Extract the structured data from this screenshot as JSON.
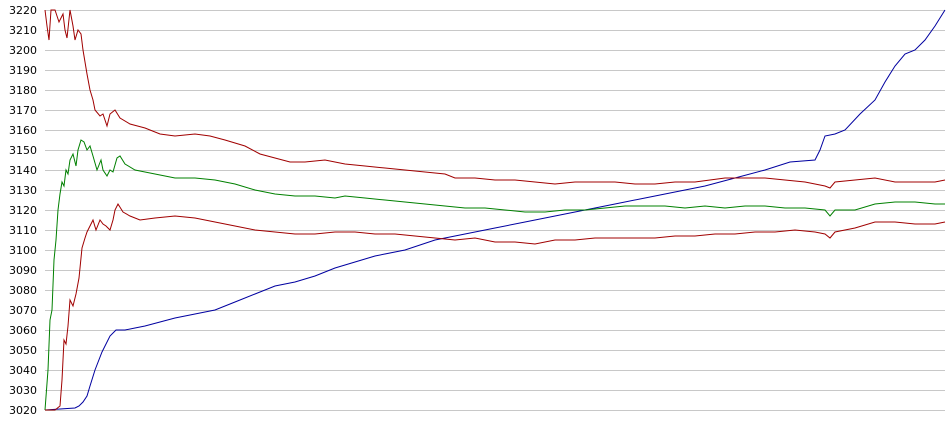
{
  "chart_data": {
    "type": "line",
    "title": "",
    "xlabel": "",
    "ylabel": "",
    "ylim": [
      3020,
      3220
    ],
    "yticks": [
      3020,
      3030,
      3040,
      3050,
      3060,
      3070,
      3080,
      3090,
      3100,
      3110,
      3120,
      3130,
      3140,
      3150,
      3160,
      3170,
      3180,
      3190,
      3200,
      3210,
      3220
    ],
    "grid": "horizontal",
    "legend": "none",
    "x_axis_labels": "none",
    "series": [
      {
        "color": "#0000a0",
        "points": [
          [
            0,
            3020
          ],
          [
            30,
            3021
          ],
          [
            34,
            3022
          ],
          [
            38,
            3024
          ],
          [
            42,
            3027
          ],
          [
            45,
            3032
          ],
          [
            50,
            3040
          ],
          [
            57,
            3049
          ],
          [
            65,
            3057
          ],
          [
            71,
            3060
          ],
          [
            80,
            3060
          ],
          [
            90,
            3061
          ],
          [
            100,
            3062
          ],
          [
            115,
            3064
          ],
          [
            130,
            3066
          ],
          [
            150,
            3068
          ],
          [
            170,
            3070
          ],
          [
            190,
            3074
          ],
          [
            210,
            3078
          ],
          [
            230,
            3082
          ],
          [
            250,
            3084
          ],
          [
            270,
            3087
          ],
          [
            290,
            3091
          ],
          [
            310,
            3094
          ],
          [
            330,
            3097
          ],
          [
            360,
            3100
          ],
          [
            390,
            3105
          ],
          [
            420,
            3108
          ],
          [
            450,
            3111
          ],
          [
            480,
            3114
          ],
          [
            510,
            3117
          ],
          [
            540,
            3120
          ],
          [
            570,
            3123
          ],
          [
            600,
            3126
          ],
          [
            630,
            3129
          ],
          [
            660,
            3132
          ],
          [
            690,
            3136
          ],
          [
            720,
            3140
          ],
          [
            745,
            3144
          ],
          [
            770,
            3145
          ],
          [
            775,
            3150
          ],
          [
            780,
            3157
          ],
          [
            790,
            3158
          ],
          [
            800,
            3160
          ],
          [
            815,
            3168
          ],
          [
            830,
            3175
          ],
          [
            840,
            3184
          ],
          [
            850,
            3192
          ],
          [
            860,
            3198
          ],
          [
            870,
            3200
          ],
          [
            880,
            3205
          ],
          [
            890,
            3212
          ],
          [
            900,
            3220
          ]
        ]
      },
      {
        "color": "#a00000",
        "points": [
          [
            0,
            3220
          ],
          [
            2,
            3212
          ],
          [
            4,
            3205
          ],
          [
            6,
            3220
          ],
          [
            10,
            3220
          ],
          [
            14,
            3214
          ],
          [
            18,
            3218
          ],
          [
            20,
            3210
          ],
          [
            22,
            3206
          ],
          [
            25,
            3220
          ],
          [
            28,
            3212
          ],
          [
            30,
            3205
          ],
          [
            33,
            3210
          ],
          [
            36,
            3208
          ],
          [
            38,
            3200
          ],
          [
            40,
            3194
          ],
          [
            42,
            3188
          ],
          [
            45,
            3180
          ],
          [
            48,
            3175
          ],
          [
            50,
            3170
          ],
          [
            55,
            3167
          ],
          [
            58,
            3168
          ],
          [
            60,
            3165
          ],
          [
            62,
            3162
          ],
          [
            65,
            3168
          ],
          [
            70,
            3170
          ],
          [
            75,
            3166
          ],
          [
            85,
            3163
          ],
          [
            100,
            3161
          ],
          [
            115,
            3158
          ],
          [
            130,
            3157
          ],
          [
            150,
            3158
          ],
          [
            165,
            3157
          ],
          [
            180,
            3155
          ],
          [
            200,
            3152
          ],
          [
            215,
            3148
          ],
          [
            230,
            3146
          ],
          [
            245,
            3144
          ],
          [
            260,
            3144
          ],
          [
            280,
            3145
          ],
          [
            300,
            3143
          ],
          [
            320,
            3142
          ],
          [
            340,
            3141
          ],
          [
            360,
            3140
          ],
          [
            380,
            3139
          ],
          [
            400,
            3138
          ],
          [
            410,
            3136
          ],
          [
            430,
            3136
          ],
          [
            450,
            3135
          ],
          [
            470,
            3135
          ],
          [
            490,
            3134
          ],
          [
            510,
            3133
          ],
          [
            530,
            3134
          ],
          [
            550,
            3134
          ],
          [
            570,
            3134
          ],
          [
            590,
            3133
          ],
          [
            610,
            3133
          ],
          [
            630,
            3134
          ],
          [
            650,
            3134
          ],
          [
            665,
            3135
          ],
          [
            680,
            3136
          ],
          [
            700,
            3136
          ],
          [
            720,
            3136
          ],
          [
            740,
            3135
          ],
          [
            760,
            3134
          ],
          [
            780,
            3132
          ],
          [
            785,
            3131
          ],
          [
            790,
            3134
          ],
          [
            810,
            3135
          ],
          [
            830,
            3136
          ],
          [
            850,
            3134
          ],
          [
            870,
            3134
          ],
          [
            890,
            3134
          ],
          [
            900,
            3135
          ]
        ]
      },
      {
        "color": "#008000",
        "points": [
          [
            0,
            3020
          ],
          [
            3,
            3040
          ],
          [
            5,
            3065
          ],
          [
            7,
            3070
          ],
          [
            9,
            3095
          ],
          [
            11,
            3105
          ],
          [
            13,
            3120
          ],
          [
            15,
            3128
          ],
          [
            17,
            3134
          ],
          [
            19,
            3132
          ],
          [
            21,
            3140
          ],
          [
            23,
            3138
          ],
          [
            25,
            3145
          ],
          [
            28,
            3148
          ],
          [
            31,
            3142
          ],
          [
            33,
            3150
          ],
          [
            36,
            3155
          ],
          [
            39,
            3154
          ],
          [
            42,
            3150
          ],
          [
            45,
            3152
          ],
          [
            48,
            3147
          ],
          [
            52,
            3140
          ],
          [
            56,
            3145
          ],
          [
            58,
            3140
          ],
          [
            62,
            3137
          ],
          [
            65,
            3140
          ],
          [
            68,
            3139
          ],
          [
            72,
            3146
          ],
          [
            75,
            3147
          ],
          [
            80,
            3143
          ],
          [
            90,
            3140
          ],
          [
            100,
            3139
          ],
          [
            110,
            3138
          ],
          [
            130,
            3136
          ],
          [
            150,
            3136
          ],
          [
            170,
            3135
          ],
          [
            190,
            3133
          ],
          [
            210,
            3130
          ],
          [
            230,
            3128
          ],
          [
            250,
            3127
          ],
          [
            270,
            3127
          ],
          [
            290,
            3126
          ],
          [
            300,
            3127
          ],
          [
            320,
            3126
          ],
          [
            340,
            3125
          ],
          [
            360,
            3124
          ],
          [
            380,
            3123
          ],
          [
            400,
            3122
          ],
          [
            420,
            3121
          ],
          [
            440,
            3121
          ],
          [
            460,
            3120
          ],
          [
            480,
            3119
          ],
          [
            500,
            3119
          ],
          [
            520,
            3120
          ],
          [
            540,
            3120
          ],
          [
            560,
            3121
          ],
          [
            580,
            3122
          ],
          [
            600,
            3122
          ],
          [
            620,
            3122
          ],
          [
            640,
            3121
          ],
          [
            660,
            3122
          ],
          [
            680,
            3121
          ],
          [
            700,
            3122
          ],
          [
            720,
            3122
          ],
          [
            740,
            3121
          ],
          [
            760,
            3121
          ],
          [
            780,
            3120
          ],
          [
            785,
            3117
          ],
          [
            790,
            3120
          ],
          [
            810,
            3120
          ],
          [
            830,
            3123
          ],
          [
            850,
            3124
          ],
          [
            870,
            3124
          ],
          [
            890,
            3123
          ],
          [
            900,
            3123
          ]
        ]
      },
      {
        "color": "#a00000",
        "points": [
          [
            0,
            3020
          ],
          [
            10,
            3020
          ],
          [
            15,
            3022
          ],
          [
            17,
            3035
          ],
          [
            19,
            3055
          ],
          [
            21,
            3053
          ],
          [
            23,
            3062
          ],
          [
            25,
            3075
          ],
          [
            28,
            3072
          ],
          [
            31,
            3078
          ],
          [
            34,
            3086
          ],
          [
            37,
            3101
          ],
          [
            40,
            3106
          ],
          [
            42,
            3109
          ],
          [
            45,
            3112
          ],
          [
            48,
            3115
          ],
          [
            51,
            3110
          ],
          [
            55,
            3115
          ],
          [
            58,
            3113
          ],
          [
            61,
            3112
          ],
          [
            65,
            3110
          ],
          [
            68,
            3115
          ],
          [
            70,
            3120
          ],
          [
            73,
            3123
          ],
          [
            78,
            3119
          ],
          [
            85,
            3117
          ],
          [
            95,
            3115
          ],
          [
            110,
            3116
          ],
          [
            130,
            3117
          ],
          [
            150,
            3116
          ],
          [
            170,
            3114
          ],
          [
            190,
            3112
          ],
          [
            210,
            3110
          ],
          [
            230,
            3109
          ],
          [
            250,
            3108
          ],
          [
            270,
            3108
          ],
          [
            290,
            3109
          ],
          [
            310,
            3109
          ],
          [
            330,
            3108
          ],
          [
            350,
            3108
          ],
          [
            370,
            3107
          ],
          [
            390,
            3106
          ],
          [
            410,
            3105
          ],
          [
            430,
            3106
          ],
          [
            450,
            3104
          ],
          [
            470,
            3104
          ],
          [
            490,
            3103
          ],
          [
            510,
            3105
          ],
          [
            530,
            3105
          ],
          [
            550,
            3106
          ],
          [
            570,
            3106
          ],
          [
            590,
            3106
          ],
          [
            610,
            3106
          ],
          [
            630,
            3107
          ],
          [
            650,
            3107
          ],
          [
            670,
            3108
          ],
          [
            690,
            3108
          ],
          [
            710,
            3109
          ],
          [
            730,
            3109
          ],
          [
            750,
            3110
          ],
          [
            770,
            3109
          ],
          [
            780,
            3108
          ],
          [
            785,
            3106
          ],
          [
            790,
            3109
          ],
          [
            810,
            3111
          ],
          [
            830,
            3114
          ],
          [
            850,
            3114
          ],
          [
            870,
            3113
          ],
          [
            890,
            3113
          ],
          [
            900,
            3114
          ]
        ]
      }
    ]
  }
}
